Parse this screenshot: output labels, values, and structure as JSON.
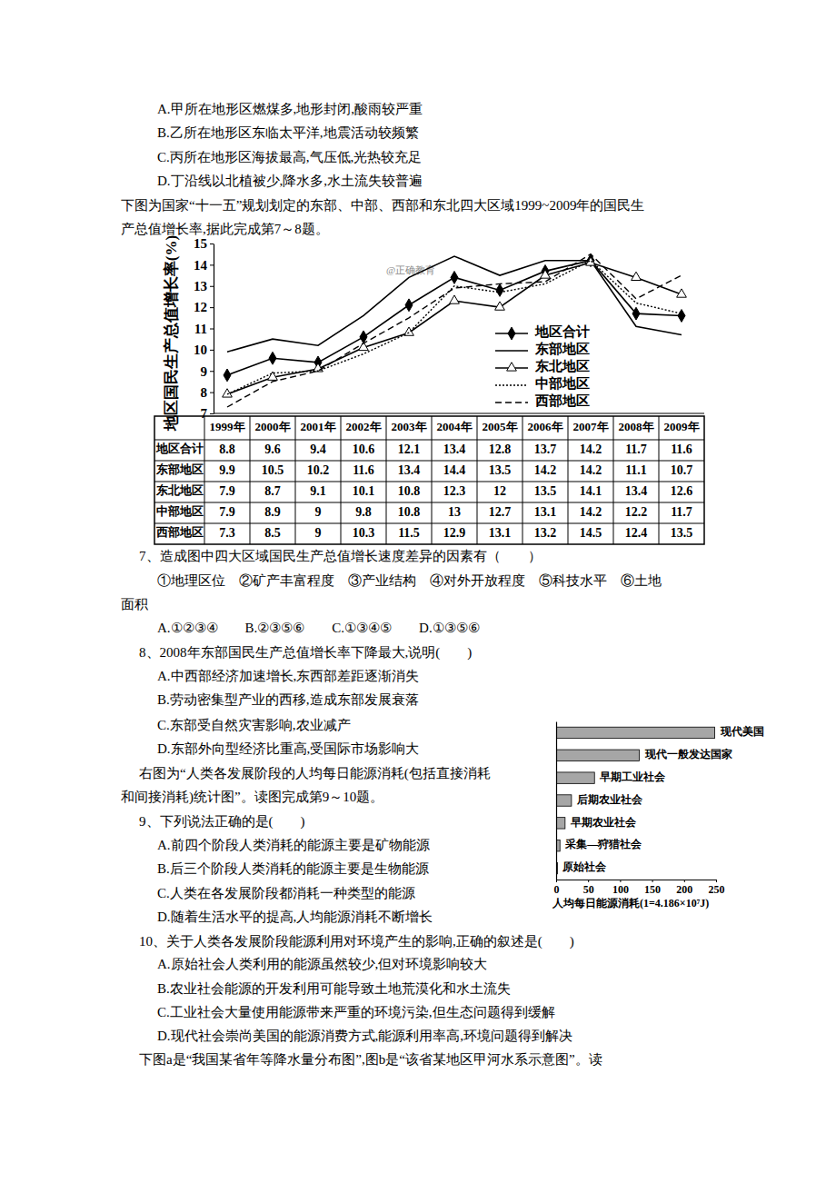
{
  "document": {
    "top_lines": [
      "A.甲所在地形区燃煤多,地形封闭,酸雨较严重",
      "B.乙所在地形区东临太平洋,地震活动较频繁",
      "C.丙所在地形区海拔最高,气压低,光热较充足",
      "D.丁沿线以北植被少,降水多,水土流失较普遍",
      "下图为国家“十一五”规划划定的东部、中部、西部和东北四大区域1999~2009年的国民生",
      "产总值增长率,据此完成第7～8题。"
    ],
    "watermark": "@正确教育",
    "lines_after_table": [
      "7、造成图中四大区域国民生产总值增长速度差异的因素有（　　）",
      "①地理区位　②矿产丰富程度　③产业结构　④对外开放程度　⑤科技水平　⑥土地",
      "面积",
      "A.①②③④　　B.②③⑤⑥　　C.①③④⑤　　D.①③⑤⑥",
      "8、2008年东部国民生产总值增长率下降最大,说明(　　)",
      "A.中西部经济加速增长,东西部差距逐渐消失",
      "B.劳动密集型产业的西移,造成东部发展衰落",
      "C.东部受自然灾害影响,农业减产",
      "D.东部外向型经济比重高,受国际市场影响大",
      "右图为“人类各发展阶段的人均每日能源消耗(包括直接消耗",
      "和间接消耗)统计图”。读图完成第9～10题。",
      "9、下列说法正确的是(　　)",
      "A.前四个阶段人类消耗的能源主要是矿物能源",
      "B.后三个阶段人类消耗的能源主要是生物能源",
      "C.人类在各发展阶段都消耗一种类型的能源",
      "D.随着生活水平的提高,人均能源消耗不断增长",
      "10、关于人类各发展阶段能源利用对环境产生的影响,正确的叙述是(　　)",
      "A.原始社会人类利用的能源虽然较少,但对环境影响较大",
      "B.农业社会能源的开发利用可能导致土地荒漠化和水土流失",
      "C.工业社会大量使用能源带来严重的环境污染,但生态问题得到缓解",
      "D.现代社会崇尚美国的能源消费方式,能源利用率高,环境问题得到解决",
      "下图a是“我国某省年等降水量分布图”,图b是“该省某地区甲河水系示意图”。读"
    ]
  },
  "chart_data": [
    {
      "type": "line",
      "y_label": "地区国民生产总值增长率(%)",
      "categories": [
        "1999年",
        "2000年",
        "2001年",
        "2002年",
        "2003年",
        "2004年",
        "2005年",
        "2006年",
        "2007年",
        "2008年",
        "2009年"
      ],
      "series": [
        {
          "name": "地区合计",
          "color": "#000000",
          "marker": "diamond",
          "line_style": "solid",
          "values": [
            8.8,
            9.6,
            9.4,
            10.6,
            12.1,
            13.4,
            12.8,
            13.7,
            14.2,
            11.7,
            11.6
          ]
        },
        {
          "name": "东部地区",
          "color": "#000000",
          "line_style": "solid",
          "values": [
            9.9,
            10.5,
            10.2,
            11.6,
            13.4,
            14.4,
            13.5,
            14.2,
            14.2,
            11.1,
            10.7
          ]
        },
        {
          "name": "东北地区",
          "color": "#000000",
          "marker": "triangle",
          "line_style": "solid",
          "values": [
            7.9,
            8.7,
            9.1,
            10.1,
            10.8,
            12.3,
            12,
            13.5,
            14.1,
            13.4,
            12.6
          ]
        },
        {
          "name": "中部地区",
          "color": "#000000",
          "line_style": "dotted",
          "values": [
            7.9,
            8.9,
            9,
            9.8,
            10.8,
            13,
            12.7,
            13.1,
            14.2,
            12.2,
            11.7
          ]
        },
        {
          "name": "西部地区",
          "color": "#000000",
          "line_style": "dashed",
          "values": [
            7.3,
            8.5,
            9,
            10.3,
            11.5,
            12.9,
            13.1,
            13.2,
            14.5,
            12.4,
            13.5
          ]
        }
      ],
      "ylim": [
        7,
        15
      ],
      "yticks": [
        7,
        8,
        9,
        10,
        11,
        12,
        13,
        14,
        15
      ],
      "grid": false,
      "legend": "right"
    },
    {
      "type": "bar",
      "orientation": "horizontal",
      "x_label": "人均每日能源消耗(1=4.186×10⁷J)",
      "categories": [
        "现代美国",
        "现代一般发达国家",
        "早期工业社会",
        "后期农业社会",
        "早期农业社会",
        "采集—狩猎社会",
        "原始社会"
      ],
      "values": [
        248,
        130,
        60,
        24,
        14,
        6,
        2
      ],
      "color": "#a6a6a6",
      "xlim": [
        0,
        250
      ],
      "xticks": [
        0,
        50,
        100,
        150,
        200,
        250
      ],
      "grid": false
    }
  ]
}
